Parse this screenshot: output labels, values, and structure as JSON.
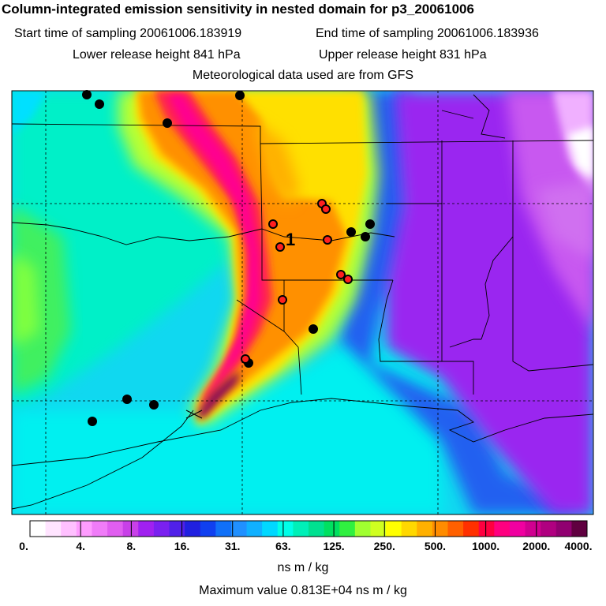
{
  "header": {
    "title": "Column-integrated emission sensitivity in nested domain for p3_20061006",
    "start_label": "Start time of sampling 20061006.183919",
    "end_label": "End time of sampling 20061006.183936",
    "lower_label": "Lower release height  841 hPa",
    "upper_label": "Upper release height  831 hPa",
    "met_label": "Meteorological data used are from GFS"
  },
  "map": {
    "release_marker": "1",
    "release_symbol": "cross-icon",
    "site_markers_black": "black-dot-icon",
    "site_markers_red": "red-dot-icon"
  },
  "colorbar": {
    "colors": [
      "#ffffff",
      "#ffe4ff",
      "#ffc0ff",
      "#ff9cff",
      "#f07cf8",
      "#e05ef0",
      "#c840e8",
      "#a020f0",
      "#7a20f0",
      "#5020e8",
      "#2020e0",
      "#1040f0",
      "#1070f8",
      "#2090ff",
      "#10b0ff",
      "#00d8ff",
      "#00ffe8",
      "#00f0b8",
      "#00e090",
      "#00e060",
      "#30f040",
      "#a0ff30",
      "#d0ff20",
      "#ffff00",
      "#ffd800",
      "#ffb000",
      "#ff8c00",
      "#ff6000",
      "#ff3000",
      "#ff0040",
      "#ff0080",
      "#f000a0",
      "#d00090",
      "#b00080",
      "#900070",
      "#600040"
    ],
    "ticks": [
      "0.",
      "4.",
      "8.",
      "16.",
      "31.",
      "63.",
      "125.",
      "250.",
      "500.",
      "1000.",
      "2000.",
      "4000."
    ]
  },
  "units_label": "ns m / kg",
  "max_label": "Maximum value  0.813E+04 ns m / kg"
}
